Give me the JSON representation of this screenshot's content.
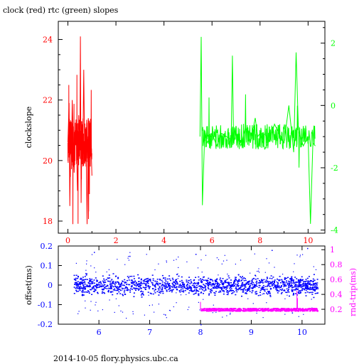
{
  "title": "clock (red) rtc (green) slopes",
  "footer": "2014-10-05  flory.physics.ubc.ca",
  "colors": {
    "clock": "#ff0000",
    "rtc": "#00ff00",
    "offset": "#0000ff",
    "rndtrip": "#ff00ff",
    "frame": "#000000"
  },
  "chart_data": [
    {
      "type": "line",
      "title": "clock (red) rtc (green) slopes",
      "ylabel": "clockslope",
      "xlim": [
        -0.4,
        10.7
      ],
      "ylim": [
        17.6,
        24.6
      ],
      "y2lim": [
        -4.1,
        2.7
      ],
      "xticks": [
        0,
        2,
        4,
        6,
        8,
        10
      ],
      "yticks": [
        18,
        20,
        22,
        24
      ],
      "y2ticks": [
        -4,
        -2,
        0,
        2
      ],
      "series": [
        {
          "name": "clock",
          "axis": "left",
          "x": [
            0.0,
            0.05,
            0.08,
            0.12,
            0.15,
            0.18,
            0.22,
            0.26,
            0.3,
            0.35,
            0.4,
            0.45,
            0.5,
            0.52,
            0.55,
            0.58,
            0.62,
            0.66,
            0.7,
            0.75,
            0.8,
            0.85,
            0.9,
            0.95,
            1.0
          ],
          "values": [
            20.6,
            21.9,
            18.5,
            21.2,
            20.0,
            22.0,
            20.8,
            19.6,
            21.0,
            20.7,
            19.0,
            21.5,
            20.4,
            24.1,
            18.6,
            21.3,
            20.2,
            23.0,
            19.9,
            21.1,
            17.9,
            21.4,
            20.3,
            20.9,
            19.5
          ]
        },
        {
          "name": "rtc",
          "axis": "right",
          "x": [
            5.5,
            5.55,
            5.6,
            5.7,
            5.8,
            6.0,
            6.2,
            6.4,
            6.6,
            6.8,
            6.85,
            6.9,
            7.0,
            7.2,
            7.4,
            7.6,
            7.8,
            7.9,
            8.0,
            8.2,
            8.4,
            8.6,
            8.8,
            9.0,
            9.2,
            9.4,
            9.5,
            9.6,
            9.8,
            10.0,
            10.1,
            10.2,
            10.3
          ],
          "values": [
            -1.0,
            2.2,
            -3.2,
            -0.8,
            -1.2,
            -0.9,
            -1.3,
            -0.9,
            -1.0,
            -1.1,
            1.6,
            -1.2,
            -0.9,
            -1.3,
            -0.7,
            -1.2,
            -0.4,
            -1.0,
            -0.9,
            -1.4,
            -1.1,
            -0.6,
            -0.9,
            -1.2,
            0.0,
            -1.5,
            1.7,
            -0.8,
            -1.3,
            -1.0,
            -3.8,
            -1.2,
            -1.3
          ]
        }
      ]
    },
    {
      "type": "scatter",
      "ylabel": "offset(ms)",
      "y2label": "rnd-trip(ms)",
      "xlim": [
        5.2,
        10.45
      ],
      "ylim": [
        -0.2,
        0.2
      ],
      "y2lim": [
        0.0,
        1.05
      ],
      "xticks": [
        6,
        7,
        8,
        9,
        10
      ],
      "yticks": [
        -0.2,
        -0.1,
        0,
        0.1,
        0.2
      ],
      "y2ticks": [
        0.2,
        0.4,
        0.6,
        0.8,
        1
      ],
      "series": [
        {
          "name": "offset",
          "axis": "left",
          "x_range": [
            5.5,
            10.3
          ],
          "center": 0.0,
          "band": 0.05,
          "outliers": [
            [
              5.9,
              0.17
            ],
            [
              6.6,
              0.15
            ],
            [
              7.3,
              -0.15
            ],
            [
              7.9,
              0.16
            ],
            [
              8.0,
              -0.2
            ],
            [
              8.7,
              -0.13
            ],
            [
              9.4,
              0.18
            ],
            [
              9.8,
              -0.14
            ],
            [
              10.1,
              0.19
            ]
          ]
        },
        {
          "name": "rnd-trip",
          "axis": "right",
          "x_range": [
            8.0,
            10.3
          ],
          "center": 0.2,
          "band": 0.04,
          "outliers": [
            [
              8.0,
              0.3
            ],
            [
              9.9,
              0.45
            ],
            [
              9.91,
              0.35
            ]
          ]
        }
      ]
    }
  ]
}
